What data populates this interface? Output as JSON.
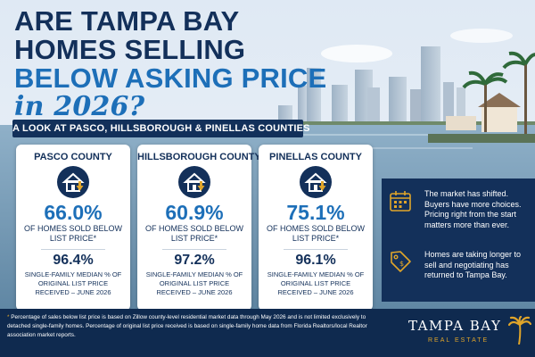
{
  "headline": {
    "line1": "ARE TAMPA BAY",
    "line2": "HOMES SELLING",
    "line3": "BELOW ASKING PRICE",
    "line4": "in 2026?"
  },
  "subbanner": "A LOOK AT PASCO, HILLSBOROUGH & PINELLAS COUNTIES",
  "counties": [
    {
      "name": "PASCO COUNTY",
      "below_list_pct": "66.0%",
      "below_list_label": "OF HOMES SOLD BELOW LIST PRICE*",
      "median_pct": "96.4%",
      "median_label": "SINGLE-FAMILY MEDIAN % OF ORIGINAL LIST PRICE RECEIVED – JUNE 2026"
    },
    {
      "name": "HILLSBOROUGH COUNTY",
      "below_list_pct": "60.9%",
      "below_list_label": "OF HOMES SOLD BELOW LIST PRICE*",
      "median_pct": "97.2%",
      "median_label": "SINGLE-FAMILY MEDIAN % OF ORIGINAL LIST PRICE RECEIVED – JUNE 2026"
    },
    {
      "name": "PINELLAS COUNTY",
      "below_list_pct": "75.1%",
      "below_list_label": "OF HOMES SOLD BELOW LIST PRICE*",
      "median_pct": "96.1%",
      "median_label": "SINGLE-FAMILY MEDIAN % OF ORIGINAL LIST PRICE RECEIVED – JUNE 2026"
    }
  ],
  "side_panel": {
    "item1": {
      "icon": "calendar-icon",
      "text": "The market has shifted. Buyers have more choices. Pricing right from the start matters more than ever."
    },
    "item2": {
      "icon": "price-tag-icon",
      "text": "Homes are taking longer to sell and negotiating has returned to Tampa Bay."
    }
  },
  "footnote": {
    "star": "*",
    "text": "Percentage of sales below list price is based on Zillow county-level residential market data through May 2026 and is not limited exclusively to detached single-family homes. Percentage of original list price received is based on single-family home data from Florida Realtors/local Realtor association market reports."
  },
  "brand": {
    "name": "TAMPA BAY",
    "sub": "REAL ESTATE",
    "icon": "palm-tree-icon"
  },
  "colors": {
    "navy": "#13305a",
    "accent_blue": "#1d6fb8",
    "gold": "#e0a52a",
    "footer": "#0f2a4f"
  }
}
